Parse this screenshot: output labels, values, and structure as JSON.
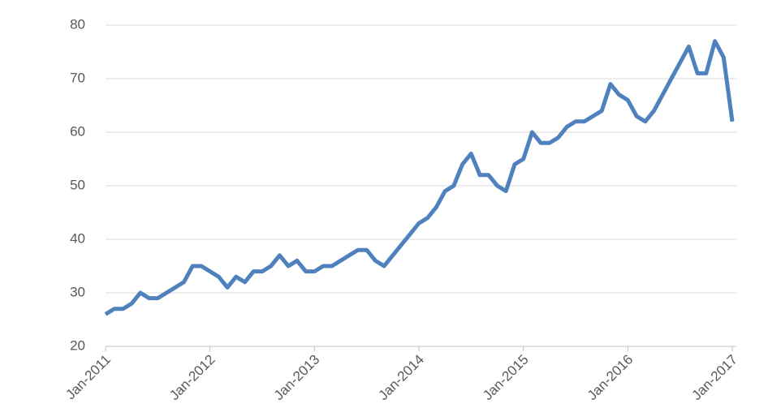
{
  "chart_data": {
    "type": "line",
    "x": [
      "2011-01",
      "2011-02",
      "2011-03",
      "2011-04",
      "2011-05",
      "2011-06",
      "2011-07",
      "2011-08",
      "2011-09",
      "2011-10",
      "2011-11",
      "2011-12",
      "2012-01",
      "2012-02",
      "2012-03",
      "2012-04",
      "2012-05",
      "2012-06",
      "2012-07",
      "2012-08",
      "2012-09",
      "2012-10",
      "2012-11",
      "2012-12",
      "2013-01",
      "2013-02",
      "2013-03",
      "2013-04",
      "2013-05",
      "2013-06",
      "2013-07",
      "2013-08",
      "2013-09",
      "2013-10",
      "2013-11",
      "2013-12",
      "2014-01",
      "2014-02",
      "2014-03",
      "2014-04",
      "2014-05",
      "2014-06",
      "2014-07",
      "2014-08",
      "2014-09",
      "2014-10",
      "2014-11",
      "2014-12",
      "2015-01",
      "2015-02",
      "2015-03",
      "2015-04",
      "2015-05",
      "2015-06",
      "2015-07",
      "2015-08",
      "2015-09",
      "2015-10",
      "2015-11",
      "2015-12",
      "2016-01",
      "2016-02",
      "2016-03",
      "2016-04",
      "2016-05",
      "2016-06",
      "2016-07",
      "2016-08",
      "2016-09",
      "2016-10",
      "2016-11",
      "2016-12",
      "2017-01"
    ],
    "series": [
      {
        "color": "#4f81bd",
        "values": [
          26,
          27,
          27,
          28,
          30,
          29,
          29,
          30,
          31,
          32,
          35,
          35,
          34,
          33,
          31,
          33,
          32,
          34,
          34,
          35,
          37,
          35,
          36,
          34,
          34,
          35,
          35,
          36,
          37,
          38,
          38,
          36,
          35,
          37,
          39,
          41,
          43,
          44,
          46,
          49,
          50,
          54,
          56,
          52,
          52,
          50,
          49,
          54,
          55,
          60,
          58,
          58,
          59,
          61,
          62,
          62,
          63,
          64,
          69,
          67,
          66,
          63,
          62,
          64,
          67,
          70,
          73,
          76,
          71,
          71,
          77,
          74,
          62
        ]
      }
    ],
    "xlim": [
      "2011-01",
      "2017-01"
    ],
    "xticks": [
      {
        "value": "2011-01",
        "label": "Jan-2011"
      },
      {
        "value": "2012-01",
        "label": "Jan-2012"
      },
      {
        "value": "2013-01",
        "label": "Jan-2013"
      },
      {
        "value": "2014-01",
        "label": "Jan-2014"
      },
      {
        "value": "2015-01",
        "label": "Jan-2015"
      },
      {
        "value": "2016-01",
        "label": "Jan-2016"
      },
      {
        "value": "2017-01",
        "label": "Jan-2017"
      }
    ],
    "ylim": [
      20,
      80
    ],
    "yticks": [
      20,
      30,
      40,
      50,
      60,
      70,
      80
    ],
    "grid": true
  }
}
